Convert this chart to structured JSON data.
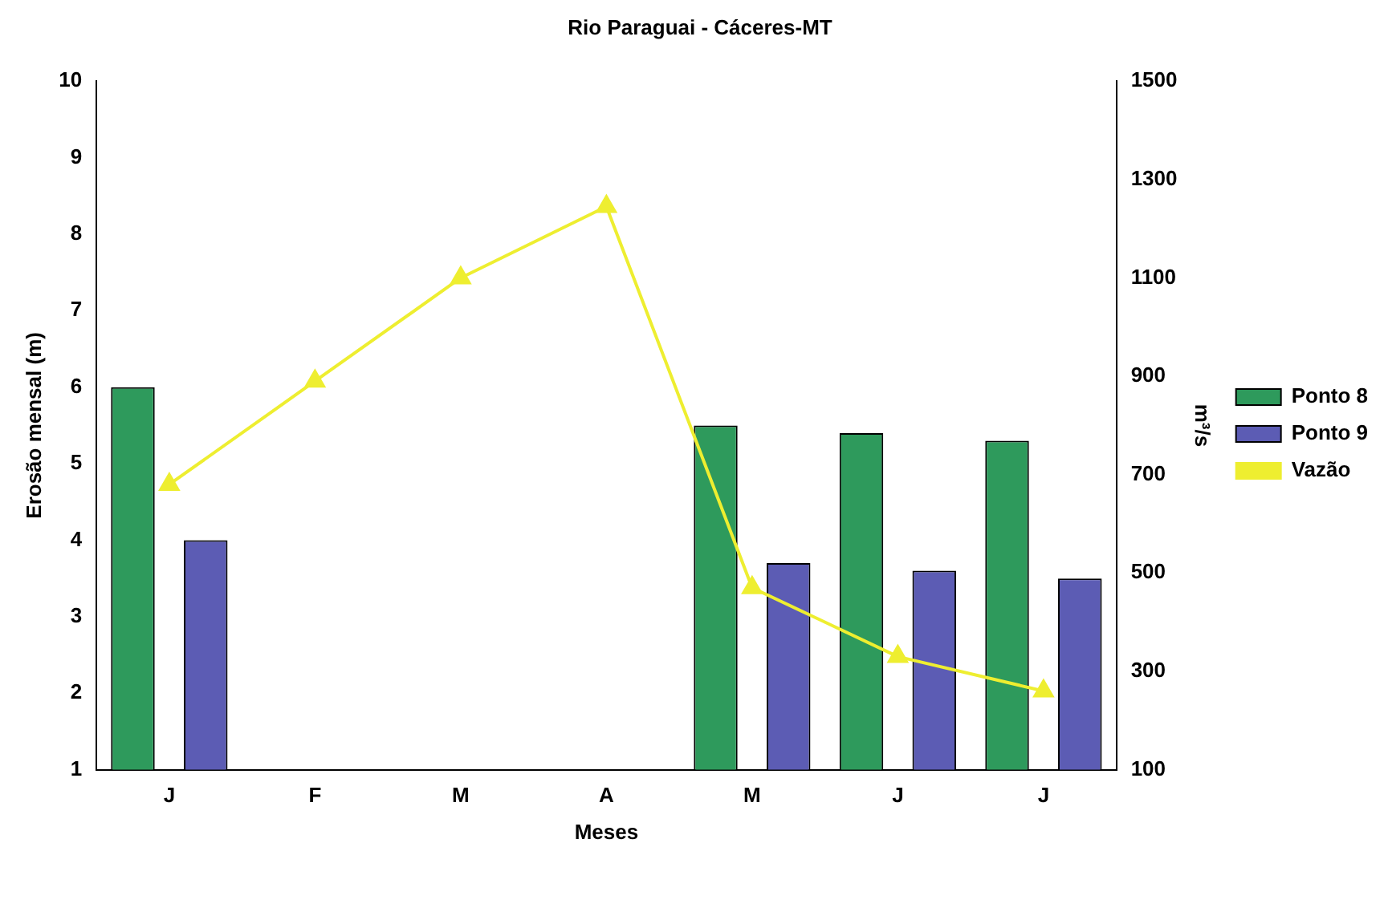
{
  "chart_data": {
    "type": "bar",
    "title": "Rio Paraguai - Cáceres-MT",
    "xlabel": "Meses",
    "ylabel": "Erosão mensal (m)",
    "y2label": "m³/s",
    "categories": [
      "J",
      "F",
      "M",
      "A",
      "M",
      "J",
      "J"
    ],
    "series": [
      {
        "name": "Ponto 8",
        "color": "#2e9a5c",
        "values": [
          6.0,
          null,
          null,
          null,
          5.5,
          5.4,
          5.3
        ]
      },
      {
        "name": "Ponto 9",
        "color": "#5c5cb4",
        "values": [
          4.0,
          null,
          null,
          null,
          3.7,
          3.6,
          3.5
        ]
      },
      {
        "name": "Vazão",
        "type": "line",
        "axis": "y2",
        "color": "#eeee30",
        "marker": "triangle",
        "values": [
          680,
          890,
          1100,
          1245,
          470,
          330,
          260
        ]
      }
    ],
    "ylim": [
      1,
      10
    ],
    "yticks": [
      1,
      2,
      3,
      4,
      5,
      6,
      7,
      8,
      9,
      10
    ],
    "y2lim": [
      100,
      1500
    ],
    "y2ticks": [
      100,
      300,
      500,
      700,
      900,
      1100,
      1300,
      1500
    ],
    "grid": false,
    "legend": "right"
  }
}
